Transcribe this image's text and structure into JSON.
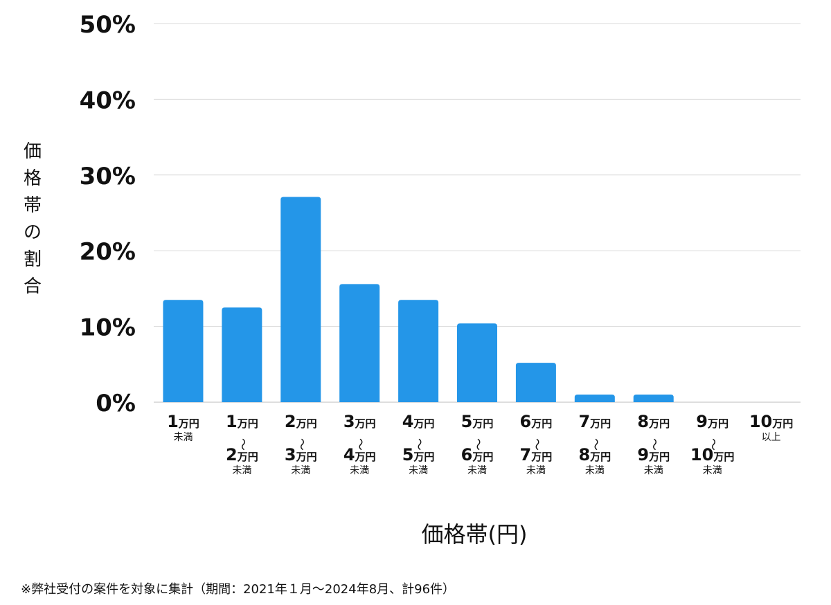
{
  "chart_data": {
    "type": "bar",
    "ylabel": "価格帯の割合",
    "xlabel": "価格帯(円)",
    "ylim": [
      0,
      50
    ],
    "yticks": [
      "0%",
      "10%",
      "20%",
      "30%",
      "40%",
      "50%"
    ],
    "ytick_values": [
      0,
      10,
      20,
      30,
      40,
      50
    ],
    "grid": true,
    "bar_color": "#2496E8",
    "categories": [
      [
        "1万円",
        "未満"
      ],
      [
        "1万円",
        "〜",
        "2万円",
        "未満"
      ],
      [
        "2万円",
        "〜",
        "3万円",
        "未満"
      ],
      [
        "3万円",
        "〜",
        "4万円",
        "未満"
      ],
      [
        "4万円",
        "〜",
        "5万円",
        "未満"
      ],
      [
        "5万円",
        "〜",
        "6万円",
        "未満"
      ],
      [
        "6万円",
        "〜",
        "7万円",
        "未満"
      ],
      [
        "7万円",
        "〜",
        "8万円",
        "未満"
      ],
      [
        "8万円",
        "〜",
        "9万円",
        "未満"
      ],
      [
        "9万円",
        "〜",
        "10万円",
        "未満"
      ],
      [
        "10万円",
        "以上"
      ]
    ],
    "values": [
      13.5,
      12.5,
      27.1,
      15.6,
      13.5,
      10.4,
      5.2,
      1.0,
      1.0,
      0,
      0
    ]
  },
  "footnote": "※弊社受付の案件を対象に集計（期間：2021年１月〜2024年8月、計96件）"
}
